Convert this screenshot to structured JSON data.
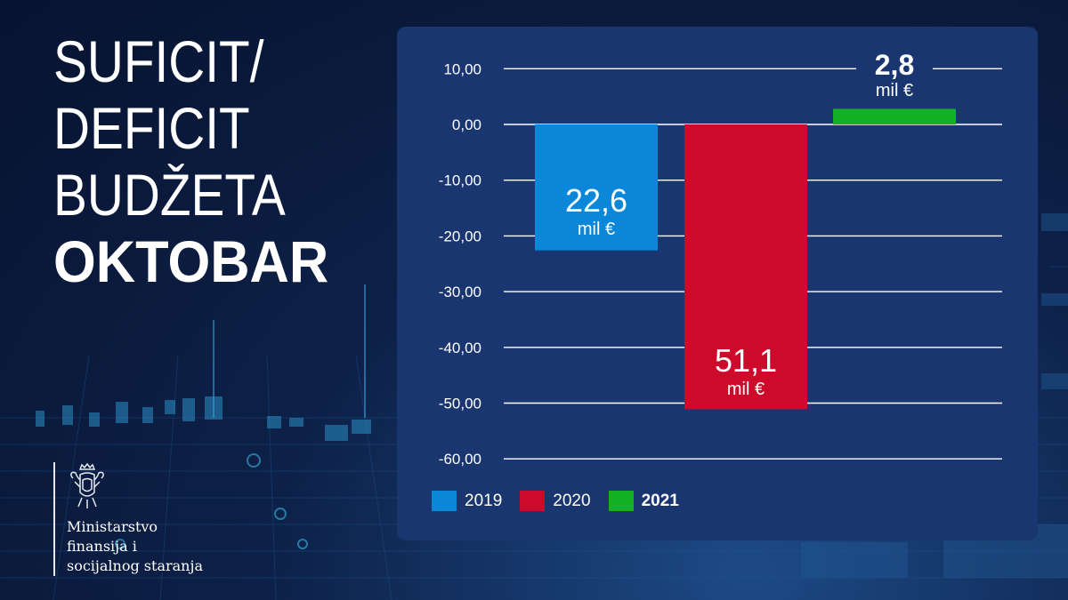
{
  "headline": {
    "line1": "SUFICIT/",
    "line2": "DEFICIT",
    "line3": "BUDŽETA",
    "line4": "OKTOBAR"
  },
  "ministry": {
    "line1": "Ministarstvo",
    "line2": "finansija i",
    "line3": "socijalnog staranja"
  },
  "chart_data": {
    "type": "bar",
    "categories": [
      "2019",
      "2020",
      "2021"
    ],
    "values": [
      -22.6,
      -51.1,
      2.8
    ],
    "data_labels": [
      {
        "value": "22,6",
        "unit": "mil €"
      },
      {
        "value": "51,1",
        "unit": "mil €"
      },
      {
        "value": "2,8",
        "unit": "mil €"
      }
    ],
    "colors": [
      "#0a87d8",
      "#cd0a2b",
      "#12b126"
    ],
    "ylim": [
      -60,
      10
    ],
    "yticks": [
      10,
      0,
      -10,
      -20,
      -30,
      -40,
      -50,
      -60
    ],
    "ytick_labels": [
      "10,00",
      "0,00",
      "-10,00",
      "-20,00",
      "-30,00",
      "-40,00",
      "-50,00",
      "-60,00"
    ],
    "grid": true,
    "legend": {
      "position": "bottom-left",
      "entries": [
        "2019",
        "2020",
        "2021"
      ],
      "bold_last": true
    }
  }
}
